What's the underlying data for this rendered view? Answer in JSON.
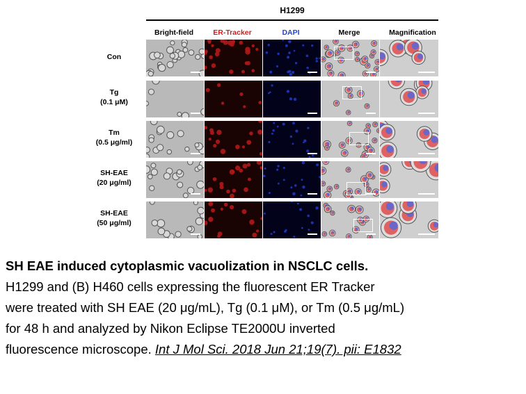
{
  "figure": {
    "cell_line": "H1299",
    "columns": [
      "Bright-field",
      "ER-Tracker",
      "DAPI",
      "Merge",
      "Magnification"
    ],
    "column_colors": [
      "#000000",
      "#d41a1a",
      "#2244cc",
      "#000000",
      "#000000"
    ],
    "rows": [
      {
        "label_line1": "Con",
        "label_line2": ""
      },
      {
        "label_line1": "Tg",
        "label_line2": "(0.1 μM)"
      },
      {
        "label_line1": "Tm",
        "label_line2": "(0.5 μg/ml)"
      },
      {
        "label_line1": "SH-EAE",
        "label_line2": "(20 μg/ml)"
      },
      {
        "label_line1": "SH-EAE",
        "label_line2": "(50 μg/ml)"
      }
    ]
  },
  "caption": {
    "title": "SH EAE induced cytoplasmic vacuolization in NSCLC cells.",
    "lines": [
      "H1299 and (B) H460 cells expressing the fluorescent ER Tracker",
      "were treated with SH EAE (20 μg/mL), Tg (0.1 μM), or Tm (0.5 μg/mL)",
      "for 48 h and analyzed by Nikon Eclipse TE2000U inverted"
    ],
    "last_line": "fluorescence microscope.",
    "citation": "Int J Mol Sci. 2018 Jun 21;19(7). pii: E1832"
  }
}
